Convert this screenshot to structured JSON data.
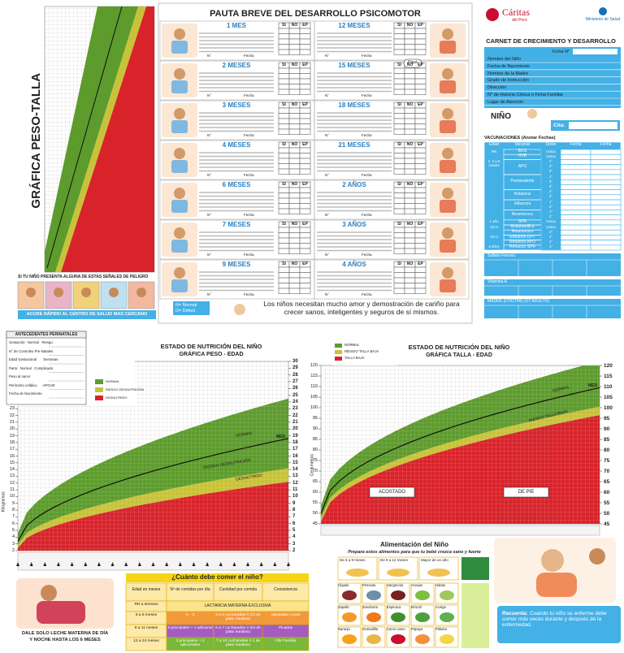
{
  "peso_talla": {
    "title": "GRÁFICA PESO-TALLA",
    "warning": "SI TU NIÑO PRESENTA ALGUNA DE ESTAS SEÑALES DE PELIGRO",
    "action": "ACUDE RÁPIDO AL CENTRO DE SALUD MAS CERCANO"
  },
  "pauta": {
    "title": "PAUTA BREVE DEL DESARROLLO PSICOMOTOR",
    "headers": [
      "SI",
      "NO",
      "EP"
    ],
    "footer": [
      "N°",
      "Fecha"
    ],
    "left": [
      "1 MES",
      "2 MESES",
      "3 MESES",
      "4 MESES",
      "6 MESES",
      "7 MESES",
      "9 MESES"
    ],
    "right": [
      "12 MESES",
      "15 MESES",
      "18 MESES",
      "21 MESES",
      "2 AÑOS",
      "3 AÑOS",
      "4 AÑOS"
    ],
    "speech": "Papá",
    "legend": [
      "N= Normal",
      "D= Déficit"
    ],
    "message": [
      "Los niños necesitan mucho amor y demostración de cariño para",
      "crecer sanos, inteligentes y seguros de sí mismos."
    ]
  },
  "carnet": {
    "org1": "Cáritas",
    "org1_sub": "del Perú",
    "org2": "Ministerio de Salud",
    "title": "CARNET DE CRECIMIENTO Y DESARROLLO",
    "ficha": "Ficha N°",
    "fields": [
      "Nombre del Niño",
      "Fecha de Nacimiento",
      "Nombre de la Madre",
      "Grado de Instrucción",
      "Dirección",
      "N° de Historia Clínica o Ficha Familiar",
      "Lugar de Atención"
    ],
    "nino": "NIÑO",
    "cita": "Cita:",
    "vac_title": "VACUNACIONES (Anotar Fechas)",
    "vac_headers": [
      "Edad",
      "Vacunas",
      "Dosis",
      "Fecha",
      "Fecha"
    ],
    "vaccines": [
      {
        "edad": "RN",
        "vacuna": "BCG",
        "dosis": [
          "Unica"
        ]
      },
      {
        "vacuna": "HVB",
        "dosis": [
          "Unica"
        ]
      },
      {
        "edad": "2, 4 y 6 meses",
        "vacuna": "APO",
        "dosis": [
          "1°",
          "2°",
          "3°"
        ]
      },
      {
        "vacuna": "Pentavalente",
        "dosis": [
          "1°",
          "2°",
          "3°"
        ]
      },
      {
        "vacuna": "Rotavirus",
        "dosis": [
          "1°",
          "2°"
        ]
      },
      {
        "vacuna": "Influenza",
        "dosis": [
          "1°",
          "2°"
        ]
      },
      {
        "vacuna": "Neumococo",
        "dosis": [
          "1°",
          "2°"
        ]
      },
      {
        "edad": "1 año",
        "vacuna": "SPR",
        "dosis": [
          "Unica"
        ]
      },
      {
        "edad": "15 m",
        "vacuna": "Antiamarílica",
        "dosis": [
          "Unica"
        ]
      },
      {
        "vacuna": "Neumococo",
        "dosis": [
          "3°"
        ]
      },
      {
        "edad": "18 m",
        "vacuna": "Refuerzo DPT",
        "dosis": [
          "1°"
        ]
      },
      {
        "vacuna": "Refuerzo APO",
        "dosis": [
          "1°"
        ]
      },
      {
        "edad": "4 años",
        "vacuna": "Refuerzo SPR",
        "dosis": [
          "1°"
        ]
      }
    ],
    "suplemento": "Sulfato Ferroso",
    "vitamina": "Vitamina A",
    "madre": "MADRE (DT/DTPA) (DT ADULTO)"
  },
  "peso_edad": {
    "antecedentes_title": "ANTECEDENTES PERINATALES",
    "antecedentes": [
      "Gestación:  Normal   Riesgo",
      "N° de Controles Pre-Natales",
      "Edad Gestacional       Semanas",
      "Parto:  Normal   Complicado",
      "Peso al nacer",
      "Perímetro cefálico      APGAR",
      "Fecha de Nacimiento"
    ],
    "title": "ESTADO DE NUTRICIÓN DEL NIÑO",
    "subtitle": "GRÁFICA PESO - EDAD",
    "legend": [
      "NORMAL",
      "RIESGO DESNUTRICIÓN",
      "DESNUTRIDO"
    ],
    "median": "MED",
    "y_label": "Kilogramos",
    "yticks_left": [
      2,
      3,
      4,
      5,
      6,
      7,
      8,
      9,
      10,
      11,
      12,
      13,
      14,
      15,
      16,
      17,
      18,
      19,
      20,
      21,
      22,
      23
    ],
    "yticks_right": [
      2,
      3,
      4,
      5,
      6,
      7,
      8,
      9,
      10,
      11,
      12,
      13,
      14,
      15,
      16,
      17,
      18,
      19,
      20,
      21,
      22,
      23,
      24,
      25,
      26,
      27,
      28,
      29,
      30
    ]
  },
  "talla_edad": {
    "title": "ESTADO DE NUTRICIÓN DEL NIÑO",
    "subtitle": "GRÁFICA TALLA - EDAD",
    "legend": [
      "NORMAL",
      "RIESGO TALLA BAJA",
      "TALLA BAJA"
    ],
    "median": "MED",
    "y_label": "Centímetros",
    "yticks": [
      45,
      50,
      55,
      60,
      65,
      70,
      75,
      80,
      85,
      90,
      95,
      100,
      105,
      110,
      115,
      120
    ],
    "positions": [
      "ACOSTADO",
      "DE PIE"
    ]
  },
  "comer": {
    "title": "¿Cuánto debe comer el niño?",
    "headers": [
      "Edad en meses",
      "Nº de comidas por día",
      "Cantidad por comida",
      "Consistencia"
    ],
    "rn": "RN a 6meses",
    "exclusive": "LACTANCIA MATERNA EXCLUSIVA",
    "rows": [
      [
        "6 a 8 meses",
        "2 – 3",
        "2 a 5 cucharadas ó 1/2 de plato mediano",
        "Aplastado o puré"
      ],
      [
        "9 a 11 meses",
        "3 principales + 1 adicional",
        "5 a 7 cucharadas ó 3/4 de plato mediano",
        "Picados"
      ],
      [
        "12 a 24 meses",
        "3 principales + 2 adicionales",
        "7 a 10 cucharadas ó 1 de plato mediano",
        "Olla Familiar"
      ]
    ],
    "caption": [
      "DALE SOLO LECHE MATERNA DE DÍA",
      "Y NOCHE HASTA LOS 6 MESES"
    ]
  },
  "alimentacion": {
    "title": "Alimentación del Niño",
    "subtitle": "Prepara estos alimentos para que tu bebé crezca sano y fuerte",
    "groups": [
      "De 6 a 9 meses",
      "De 9 a 12 meses",
      "Mayor de un año"
    ],
    "foods": [
      "Hígado",
      "Pescado",
      "Sangrecita",
      "Arvejas",
      "Habas",
      "Zapallo",
      "Zanahoria",
      "Espinaca",
      "Brócoli",
      "Acelga",
      "Naranja",
      "Granadilla",
      "Camu camu",
      "Papaya",
      "Plátano"
    ],
    "reminder_label": "Recuerda:",
    "reminder": "Cuando tu niño se enferme debe comer más veces durante y después de la enfermedad."
  }
}
